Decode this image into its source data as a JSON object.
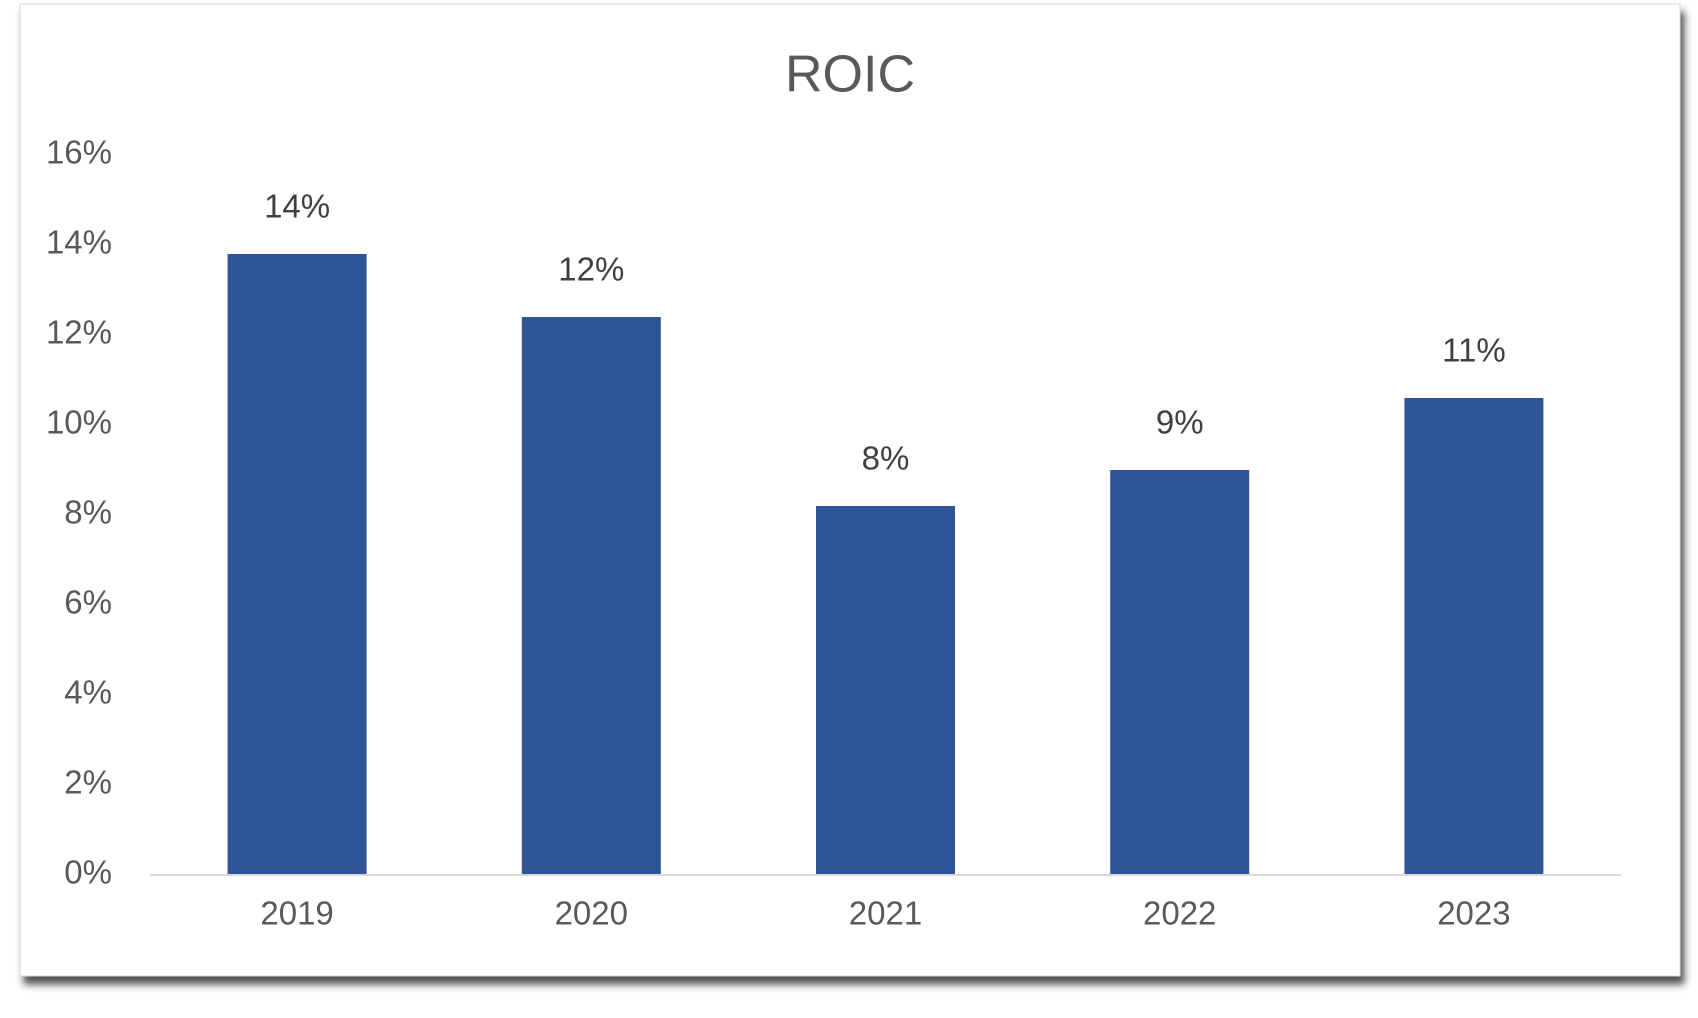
{
  "chart_data": {
    "type": "bar",
    "title": "ROIC",
    "categories": [
      "2019",
      "2020",
      "2021",
      "2022",
      "2023"
    ],
    "values": [
      13.8,
      12.4,
      8.2,
      9.0,
      10.6
    ],
    "value_labels": [
      "14%",
      "12%",
      "8%",
      "9%",
      "11%"
    ],
    "color": "#2f5597",
    "ylim": [
      0,
      16
    ],
    "yticks": [
      {
        "value": 0,
        "label": "0%"
      },
      {
        "value": 2,
        "label": "2%"
      },
      {
        "value": 4,
        "label": "4%"
      },
      {
        "value": 6,
        "label": "6%"
      },
      {
        "value": 8,
        "label": "8%"
      },
      {
        "value": 10,
        "label": "10%"
      },
      {
        "value": 12,
        "label": "12%"
      },
      {
        "value": 14,
        "label": "14%"
      },
      {
        "value": 16,
        "label": "16%"
      }
    ],
    "grid": false
  }
}
